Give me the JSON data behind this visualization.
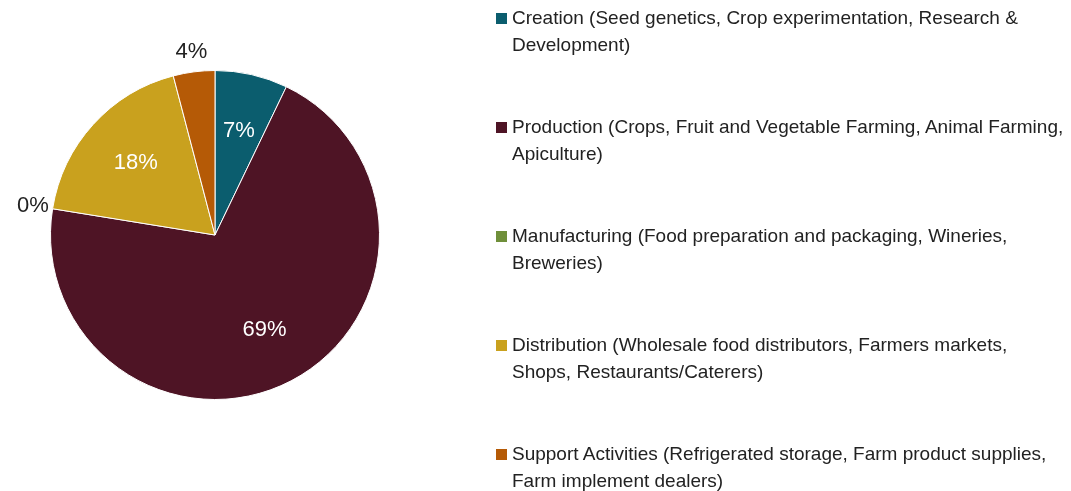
{
  "chart_data": {
    "type": "pie",
    "categories": [
      "Creation (Seed genetics, Crop experimentation, Research & Development)",
      "Production (Crops, Fruit and Vegetable Farming, Animal Farming, Apiculture)",
      "Manufacturing (Food preparation and packaging, Wineries, Breweries)",
      "Distribution (Wholesale food distributors, Farmers markets, Shops, Restaurants/Caterers)",
      "Support Activities (Refrigerated storage, Farm product supplies, Farm implement dealers)"
    ],
    "values": [
      7,
      69,
      0,
      18,
      4
    ],
    "colors": [
      "#0b5d6e",
      "#4e1425",
      "#6f8f3a",
      "#c9a11e",
      "#b55a06"
    ],
    "value_labels": [
      "7%",
      "69%",
      "0%",
      "18%",
      "4%"
    ],
    "legend": "right"
  }
}
